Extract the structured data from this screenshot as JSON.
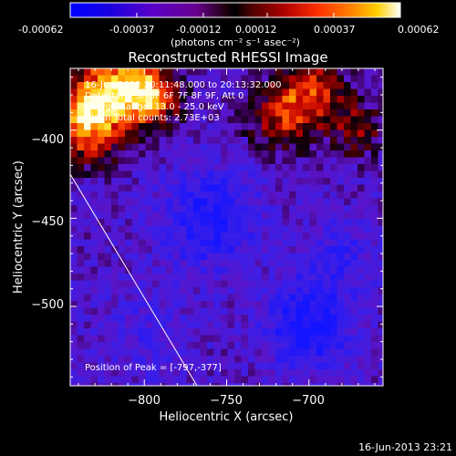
{
  "colorbar": {
    "tick_labels": [
      "-0.00062",
      "-0.00037",
      "-0.00012",
      "0.00012",
      "0.00037",
      "0.00062"
    ],
    "unit_label": "(photons cm⁻² s⁻¹ asec⁻²)",
    "range": [
      -0.00062,
      0.00062
    ]
  },
  "chart_data": {
    "type": "heatmap",
    "title": "Reconstructed RHESSI Image",
    "xlabel": "Heliocentric X (arcsec)",
    "ylabel": "Heliocentric Y (arcsec)",
    "xlim": [
      -845,
      -655
    ],
    "ylim": [
      -545,
      -365
    ],
    "x_ticks": [
      -800,
      -750,
      -700
    ],
    "x_tick_labels": [
      "−800",
      "−750",
      "−700"
    ],
    "y_ticks": [
      -400,
      -450,
      -500
    ],
    "y_tick_labels": [
      "−400",
      "−450",
      "−500"
    ],
    "limb_line": [
      [
        -845,
        -425
      ],
      [
        -768,
        -545
      ]
    ],
    "info_lines": [
      "16-Jun-2013 20:11:48.000 to 20:13:32.000",
      "Detectors: 3F 5F 6F 7F 8F 9F, Att 0",
      "Energy Range: 13.0 - 25.0 keV",
      "Clean    Total counts: 2.73E+03"
    ],
    "peak_label": "Position of Peak = [-797,-377]",
    "peak_position": [
      -797,
      -377
    ]
  },
  "footer": {
    "timestamp": "16-Jun-2013 23:21"
  }
}
